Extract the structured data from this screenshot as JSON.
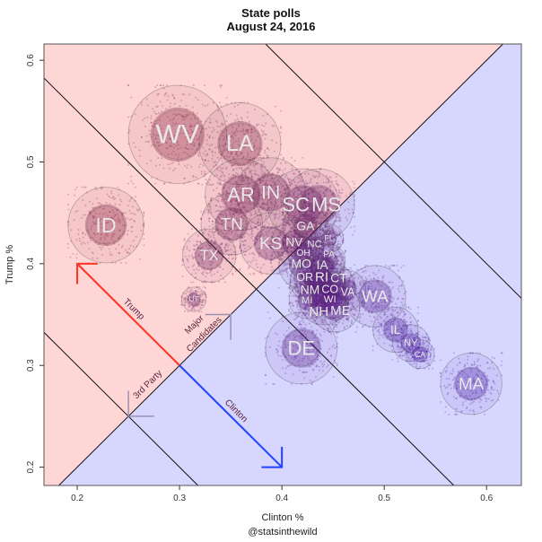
{
  "chart_data": {
    "type": "scatter",
    "title": "State polls",
    "subtitle": "August 24, 2016",
    "xlabel": "Clinton %",
    "ylabel": "Trump %",
    "credit": "@statsinthewild",
    "xlim": [
      0.1675,
      0.634
    ],
    "ylim": [
      0.182,
      0.616
    ],
    "xticks": [
      "0.2",
      "0.3",
      "0.4",
      "0.5",
      "0.6"
    ],
    "yticks": [
      "0.2",
      "0.3",
      "0.4",
      "0.5",
      "0.6"
    ],
    "grid": false,
    "regions": {
      "trump_color": "#FFD6D6",
      "clinton_color": "#D6D6FF"
    },
    "reference_lines": {
      "equal_line": "Trump = Clinton",
      "sum_levels": [
        0.5,
        0.75,
        1.0
      ]
    },
    "annotations": {
      "trump_arrow": {
        "label": "Trump",
        "from": [
          0.3,
          0.3
        ],
        "to": [
          0.2,
          0.4
        ],
        "color": "#FF3322"
      },
      "clinton_arrow": {
        "label": "Clinton",
        "from": [
          0.3,
          0.3
        ],
        "to": [
          0.4,
          0.2
        ],
        "color": "#2244FF"
      },
      "major_candidates": {
        "label1": "Major",
        "label2": "Candidates",
        "at": [
          0.35,
          0.35
        ]
      },
      "third_party": {
        "label": "3rd Party",
        "at": [
          0.25,
          0.25
        ]
      }
    },
    "colors": {
      "trump_state": "#7A1838",
      "clinton_state": "#4A1AA0"
    },
    "states": [
      {
        "label": "WV",
        "clinton": 0.298,
        "trump": 0.527,
        "spread": 0.048
      },
      {
        "label": "LA",
        "clinton": 0.359,
        "trump": 0.518,
        "spread": 0.04
      },
      {
        "label": "ID",
        "clinton": 0.228,
        "trump": 0.438,
        "spread": 0.037
      },
      {
        "label": "AR",
        "clinton": 0.36,
        "trump": 0.468,
        "spread": 0.035
      },
      {
        "label": "IN",
        "clinton": 0.389,
        "trump": 0.47,
        "spread": 0.034
      },
      {
        "label": "TN",
        "clinton": 0.351,
        "trump": 0.439,
        "spread": 0.03
      },
      {
        "label": "TX",
        "clinton": 0.329,
        "trump": 0.408,
        "spread": 0.026
      },
      {
        "label": "UT",
        "clinton": 0.314,
        "trump": 0.365,
        "spread": 0.012
      },
      {
        "label": "SC",
        "clinton": 0.421,
        "trump": 0.458,
        "spread": 0.035
      },
      {
        "label": "MS",
        "clinton": 0.436,
        "trump": 0.458,
        "spread": 0.035
      },
      {
        "label": "GA",
        "clinton": 0.423,
        "trump": 0.437,
        "spread": 0.022
      },
      {
        "label": "KS",
        "clinton": 0.389,
        "trump": 0.42,
        "spread": 0.03
      },
      {
        "label": "NV",
        "clinton": 0.412,
        "trump": 0.421,
        "spread": 0.022
      },
      {
        "label": "NC",
        "clinton": 0.432,
        "trump": 0.417,
        "spread": 0.018
      },
      {
        "label": "FL",
        "clinton": 0.446,
        "trump": 0.425,
        "spread": 0.014
      },
      {
        "label": "OH",
        "clinton": 0.421,
        "trump": 0.411,
        "spread": 0.016
      },
      {
        "label": "MO",
        "clinton": 0.419,
        "trump": 0.398,
        "spread": 0.022
      },
      {
        "label": "IA",
        "clinton": 0.439,
        "trump": 0.398,
        "spread": 0.022
      },
      {
        "label": "PA",
        "clinton": 0.446,
        "trump": 0.403,
        "spread": 0.016
      },
      {
        "label": "OR",
        "clinton": 0.428,
        "trump": 0.383,
        "spread": 0.02
      },
      {
        "label": "NM",
        "clinton": 0.434,
        "trump": 0.383,
        "spread": 0.022
      },
      {
        "label": "RI",
        "clinton": 0.438,
        "trump": 0.383,
        "spread": 0.024
      },
      {
        "label": "CT",
        "clinton": 0.449,
        "trump": 0.378,
        "spread": 0.022
      },
      {
        "label": "CO",
        "clinton": 0.445,
        "trump": 0.373,
        "spread": 0.02
      },
      {
        "label": "VA",
        "clinton": 0.462,
        "trump": 0.374,
        "spread": 0.02
      },
      {
        "label": "MI",
        "clinton": 0.425,
        "trump": 0.364,
        "spread": 0.018
      },
      {
        "label": "NH",
        "clinton": 0.441,
        "trump": 0.364,
        "spread": 0.024
      },
      {
        "label": "WI",
        "clinton": 0.447,
        "trump": 0.364,
        "spread": 0.018
      },
      {
        "label": "ME",
        "clinton": 0.452,
        "trump": 0.357,
        "spread": 0.024
      },
      {
        "label": "WA",
        "clinton": 0.491,
        "trump": 0.368,
        "spread": 0.03
      },
      {
        "label": "DE",
        "clinton": 0.419,
        "trump": 0.317,
        "spread": 0.035
      },
      {
        "label": "IL",
        "clinton": 0.511,
        "trump": 0.335,
        "spread": 0.022
      },
      {
        "label": "NY",
        "clinton": 0.526,
        "trump": 0.322,
        "spread": 0.018
      },
      {
        "label": "CA",
        "clinton": 0.535,
        "trump": 0.311,
        "spread": 0.014
      },
      {
        "label": "MA",
        "clinton": 0.585,
        "trump": 0.282,
        "spread": 0.03
      }
    ]
  }
}
